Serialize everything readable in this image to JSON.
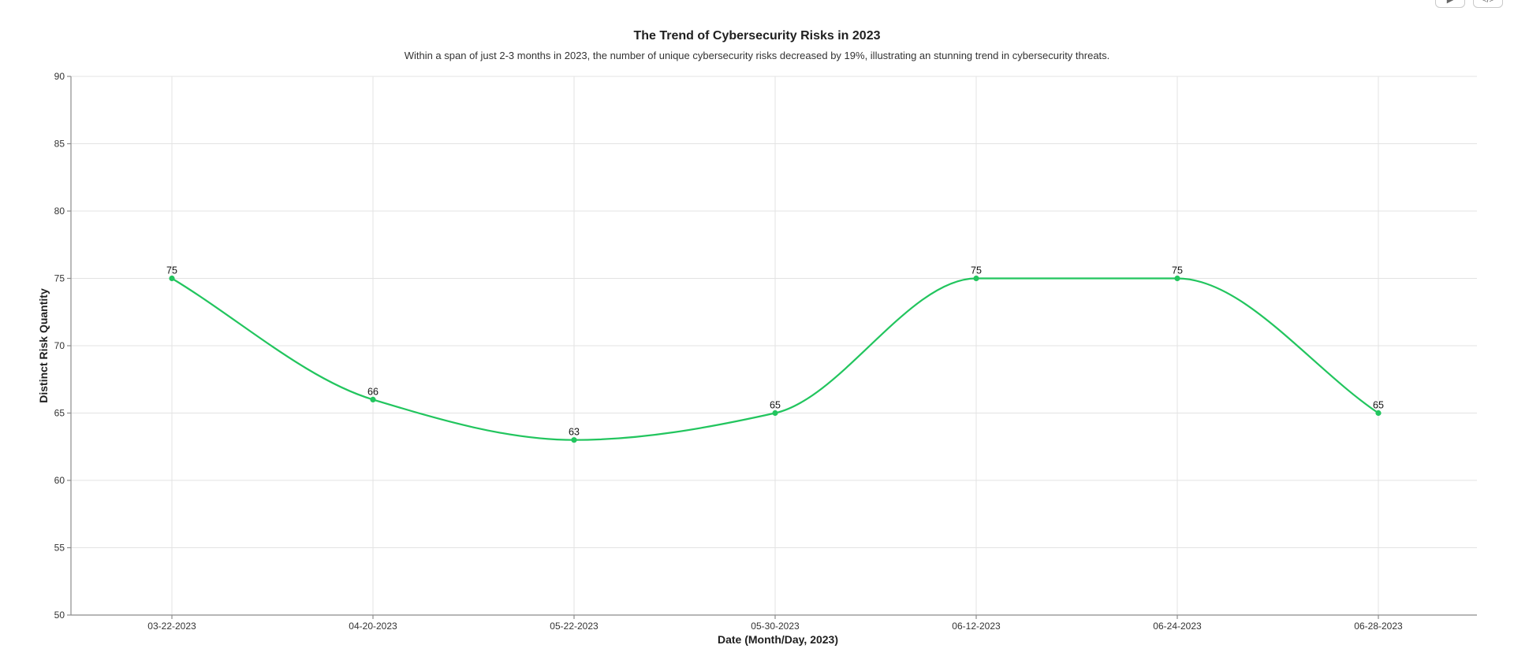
{
  "controls": [
    {
      "name": "play",
      "glyph": "▶"
    },
    {
      "name": "code",
      "glyph": "</>"
    }
  ],
  "chart_data": {
    "type": "line",
    "title": "The Trend of Cybersecurity Risks in 2023",
    "subtitle": "Within a span of just 2-3 months in 2023, the number of unique cybersecurity risks decreased by 19%, illustrating an stunning trend in cybersecurity threats.",
    "xlabel": "Date (Month/Day, 2023)",
    "ylabel": "Distinct Risk Quantity",
    "categories": [
      "03-22-2023",
      "04-20-2023",
      "05-22-2023",
      "05-30-2023",
      "06-12-2023",
      "06-24-2023",
      "06-28-2023"
    ],
    "series": [
      {
        "values": [
          75,
          66,
          63,
          65,
          75,
          75,
          65
        ],
        "color": "#22c55e"
      }
    ],
    "ylim": [
      50,
      90
    ],
    "yticks": [
      50,
      55,
      60,
      65,
      70,
      75,
      80,
      85,
      90
    ],
    "grid": true,
    "smooth": true,
    "data_labels": true
  }
}
